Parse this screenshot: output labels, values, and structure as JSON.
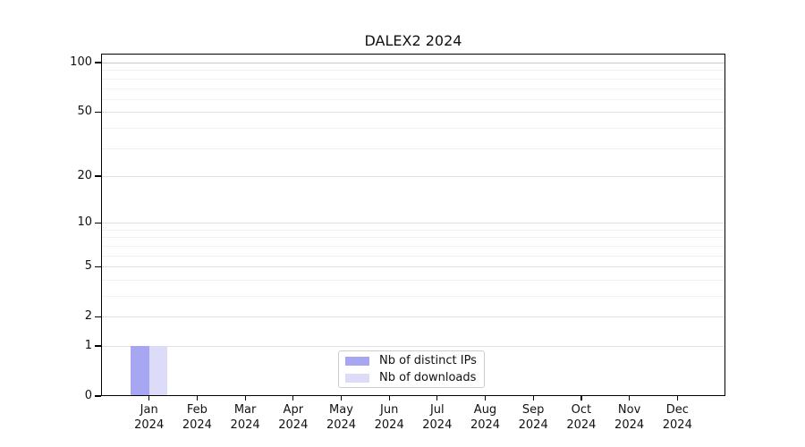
{
  "chart_data": {
    "type": "bar",
    "title": "DALEX2 2024",
    "x_tick_labels": [
      {
        "month": "Jan",
        "year": "2024"
      },
      {
        "month": "Feb",
        "year": "2024"
      },
      {
        "month": "Mar",
        "year": "2024"
      },
      {
        "month": "Apr",
        "year": "2024"
      },
      {
        "month": "May",
        "year": "2024"
      },
      {
        "month": "Jun",
        "year": "2024"
      },
      {
        "month": "Jul",
        "year": "2024"
      },
      {
        "month": "Aug",
        "year": "2024"
      },
      {
        "month": "Sep",
        "year": "2024"
      },
      {
        "month": "Oct",
        "year": "2024"
      },
      {
        "month": "Nov",
        "year": "2024"
      },
      {
        "month": "Dec",
        "year": "2024"
      }
    ],
    "series": [
      {
        "name": "Nb of distinct IPs",
        "color": "#a6a6f2",
        "values": [
          1,
          0,
          0,
          0,
          0,
          0,
          0,
          0,
          0,
          0,
          0,
          0
        ]
      },
      {
        "name": "Nb of downloads",
        "color": "#dcdcf8",
        "values": [
          1,
          0,
          0,
          0,
          0,
          0,
          0,
          0,
          0,
          0,
          0,
          0
        ]
      }
    ],
    "yscale": "log1p",
    "ylim": [
      0,
      113
    ],
    "y_major_ticks": [
      0,
      1,
      2,
      5,
      10,
      20,
      50,
      100
    ],
    "y_minor_ticks": [
      3,
      4,
      6,
      7,
      8,
      9,
      30,
      40,
      60,
      70,
      80,
      90
    ],
    "grid": true,
    "legend_position": "bottom-center"
  },
  "colors": {
    "background": "#ffffff",
    "axis": "#000000",
    "grid_major": "#e0e0e0",
    "grid_minor": "#f2f2f2",
    "grid_top": "#c8c8c8",
    "bar_distinct_ips": "#a6a6f2",
    "bar_downloads": "#dcdcf8"
  }
}
